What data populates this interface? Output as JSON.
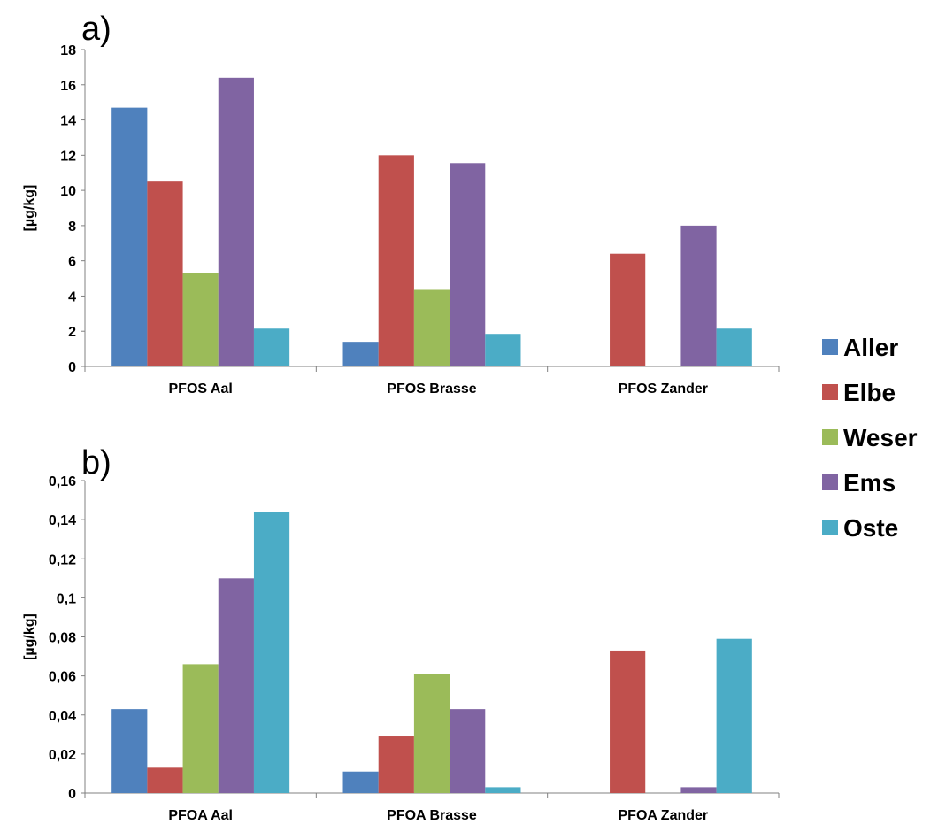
{
  "colors": {
    "Aller": "#4f81bd",
    "Elbe": "#c0504d",
    "Weser": "#9bbb59",
    "Ems": "#8064a2",
    "Oste": "#4bacc6"
  },
  "legend": [
    "Aller",
    "Elbe",
    "Weser",
    "Ems",
    "Oste"
  ],
  "chart_data": [
    {
      "type": "bar",
      "panel": "a)",
      "ylabel": "[µg/kg]",
      "xlabel": "",
      "categories": [
        "PFOS Aal",
        "PFOS Brasse",
        "PFOS Zander"
      ],
      "ylim": [
        0,
        18
      ],
      "yticks": [
        "0",
        "2",
        "4",
        "6",
        "8",
        "10",
        "12",
        "14",
        "16",
        "18"
      ],
      "ytick_values": [
        0,
        2,
        4,
        6,
        8,
        10,
        12,
        14,
        16,
        18
      ],
      "series": [
        {
          "name": "Aller",
          "values": [
            14.7,
            1.4,
            0
          ]
        },
        {
          "name": "Elbe",
          "values": [
            10.5,
            12.0,
            6.4
          ]
        },
        {
          "name": "Weser",
          "values": [
            5.3,
            4.35,
            0
          ]
        },
        {
          "name": "Ems",
          "values": [
            16.4,
            11.55,
            8.0
          ]
        },
        {
          "name": "Oste",
          "values": [
            2.15,
            1.85,
            2.15
          ]
        }
      ]
    },
    {
      "type": "bar",
      "panel": "b)",
      "ylabel": "[µg/kg]",
      "xlabel": "",
      "categories": [
        "PFOA Aal",
        "PFOA Brasse",
        "PFOA Zander"
      ],
      "ylim": [
        0,
        0.16
      ],
      "yticks": [
        "0",
        "0,02",
        "0,04",
        "0,06",
        "0,08",
        "0,1",
        "0,12",
        "0,14",
        "0,16"
      ],
      "ytick_values": [
        0,
        0.02,
        0.04,
        0.06,
        0.08,
        0.1,
        0.12,
        0.14,
        0.16
      ],
      "series": [
        {
          "name": "Aller",
          "values": [
            0.043,
            0.011,
            0
          ]
        },
        {
          "name": "Elbe",
          "values": [
            0.013,
            0.029,
            0.073
          ]
        },
        {
          "name": "Weser",
          "values": [
            0.066,
            0.061,
            0
          ]
        },
        {
          "name": "Ems",
          "values": [
            0.11,
            0.043,
            0.003
          ]
        },
        {
          "name": "Oste",
          "values": [
            0.144,
            0.003,
            0.079
          ]
        }
      ]
    }
  ]
}
